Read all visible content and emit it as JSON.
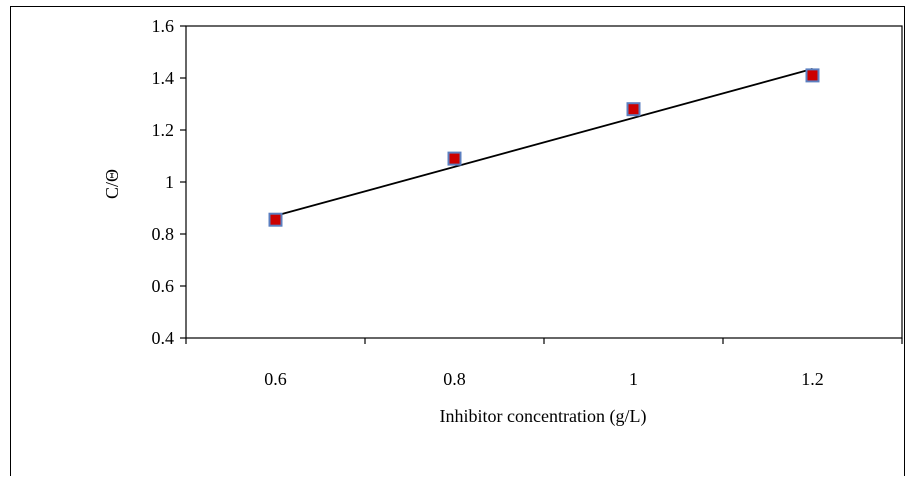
{
  "chart_data": {
    "type": "scatter",
    "xlabel": "Inhibitor concentration (g/L)",
    "ylabel": "C/Θ",
    "xlim": [
      0.5,
      1.3
    ],
    "ylim": [
      0.4,
      1.6
    ],
    "x_ticks": [
      0.6,
      0.8,
      1,
      1.2
    ],
    "x_tick_labels": [
      "0.6",
      "0.8",
      "1",
      "1.2"
    ],
    "y_ticks": [
      0.4,
      0.6,
      0.8,
      1.0,
      1.2,
      1.4,
      1.6
    ],
    "y_tick_labels": [
      "0.4",
      "0.6",
      "0.8",
      "1",
      "1.2",
      "1.4",
      "1.6"
    ],
    "grid": false,
    "legend": "none",
    "series": [
      {
        "x": [
          0.6,
          0.8,
          1.0,
          1.2
        ],
        "y": [
          0.855,
          1.09,
          1.28,
          1.41
        ],
        "marker": "square",
        "marker_fill": "#cc0000",
        "marker_edge": "#5b7fc0"
      }
    ],
    "trendline": {
      "type": "linear",
      "x": [
        0.6,
        1.2
      ],
      "y": [
        0.87,
        1.435
      ],
      "color": "#000000"
    }
  }
}
